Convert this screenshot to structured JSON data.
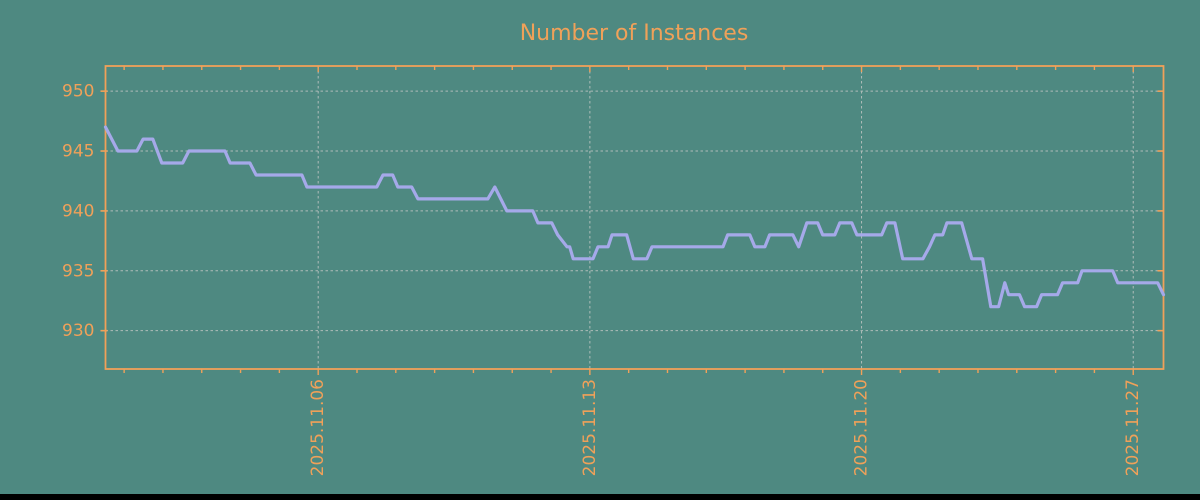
{
  "title": "Number of Instances",
  "colors": {
    "background": "#4E8981",
    "accent": "#F0A159",
    "line": "#A5A9E9",
    "grid": "#AFBCB9",
    "bottom_bar": "#000000"
  },
  "chart_data": {
    "type": "line",
    "title": "Number of Instances",
    "xlabel": "",
    "ylabel": "",
    "x_unit": "day of month, November 2025",
    "xlim": [
      0.52,
      27.78
    ],
    "ylim": [
      926.8,
      952.1
    ],
    "y_ticks": [
      930,
      935,
      940,
      945,
      950
    ],
    "x_major_ticks": [
      {
        "day": 6,
        "label": "2025.11.06"
      },
      {
        "day": 13,
        "label": "2025.11.13"
      },
      {
        "day": 20,
        "label": "2025.11.20"
      },
      {
        "day": 27,
        "label": "2025.11.27"
      }
    ],
    "x_minor_tick_days": [
      1,
      2,
      3,
      4,
      5,
      6,
      7,
      8,
      9,
      10,
      11,
      12,
      13,
      14,
      15,
      16,
      17,
      18,
      19,
      20,
      21,
      22,
      23,
      24,
      25,
      26,
      27
    ],
    "grid": {
      "horizontal_at_y_ticks": true,
      "vertical_at_major_ticks": true,
      "style": "dashed"
    },
    "legend": null,
    "series": [
      {
        "name": "Number of Instances",
        "points": [
          [
            0.52,
            947
          ],
          [
            0.84,
            945
          ],
          [
            1.33,
            945
          ],
          [
            1.49,
            946
          ],
          [
            1.74,
            946
          ],
          [
            1.97,
            944
          ],
          [
            2.51,
            944
          ],
          [
            2.67,
            945
          ],
          [
            3.6,
            945
          ],
          [
            3.73,
            944
          ],
          [
            4.24,
            944
          ],
          [
            4.4,
            943
          ],
          [
            5.58,
            943
          ],
          [
            5.71,
            942
          ],
          [
            7.51,
            942
          ],
          [
            7.67,
            943
          ],
          [
            7.92,
            943
          ],
          [
            8.05,
            942
          ],
          [
            8.41,
            942
          ],
          [
            8.57,
            941
          ],
          [
            10.37,
            941
          ],
          [
            10.55,
            942
          ],
          [
            10.86,
            940
          ],
          [
            11.53,
            940
          ],
          [
            11.66,
            939
          ],
          [
            12.02,
            939
          ],
          [
            12.17,
            938
          ],
          [
            12.41,
            937
          ],
          [
            12.48,
            937
          ],
          [
            12.57,
            936
          ],
          [
            13.08,
            936
          ],
          [
            13.21,
            937
          ],
          [
            13.47,
            937
          ],
          [
            13.57,
            938
          ],
          [
            13.95,
            938
          ],
          [
            14.12,
            936
          ],
          [
            14.47,
            936
          ],
          [
            14.6,
            937
          ],
          [
            16.43,
            937
          ],
          [
            16.55,
            938
          ],
          [
            17.12,
            938
          ],
          [
            17.25,
            937
          ],
          [
            17.51,
            937
          ],
          [
            17.63,
            938
          ],
          [
            18.23,
            938
          ],
          [
            18.38,
            937
          ],
          [
            18.59,
            939
          ],
          [
            18.87,
            939
          ],
          [
            19.0,
            938
          ],
          [
            19.31,
            938
          ],
          [
            19.44,
            939
          ],
          [
            19.75,
            939
          ],
          [
            19.88,
            938
          ],
          [
            20.52,
            938
          ],
          [
            20.65,
            939
          ],
          [
            20.86,
            939
          ],
          [
            21.06,
            936
          ],
          [
            21.58,
            936
          ],
          [
            21.75,
            937
          ],
          [
            21.89,
            938
          ],
          [
            22.09,
            938
          ],
          [
            22.2,
            939
          ],
          [
            22.58,
            939
          ],
          [
            22.84,
            936
          ],
          [
            23.12,
            936
          ],
          [
            23.33,
            932
          ],
          [
            23.53,
            932
          ],
          [
            23.69,
            934
          ],
          [
            23.79,
            933
          ],
          [
            24.07,
            933
          ],
          [
            24.2,
            932
          ],
          [
            24.51,
            932
          ],
          [
            24.64,
            933
          ],
          [
            25.05,
            933
          ],
          [
            25.18,
            934
          ],
          [
            25.57,
            934
          ],
          [
            25.68,
            935
          ],
          [
            26.47,
            935
          ],
          [
            26.6,
            934
          ],
          [
            27.63,
            934
          ],
          [
            27.78,
            933
          ]
        ]
      }
    ]
  }
}
